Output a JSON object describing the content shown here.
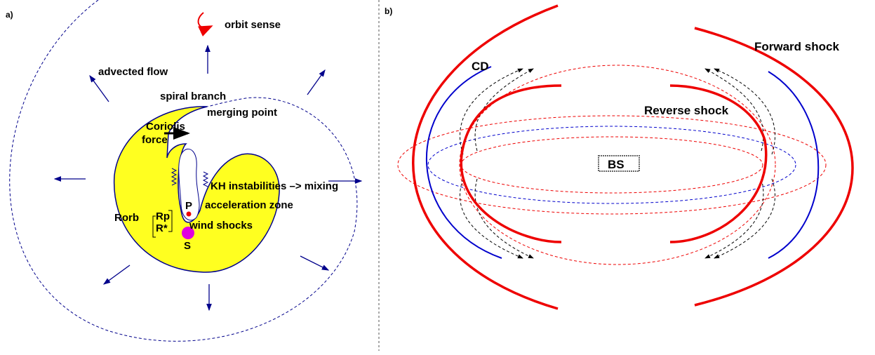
{
  "panel_a": {
    "label": "a)",
    "orbit_sense": "orbit sense",
    "advected_flow": "advected flow",
    "spiral_branch": "spiral branch",
    "merging_point": "merging point",
    "coriolis": "Coriolis",
    "force": "force",
    "kh": "KH instabilities –> mixing",
    "acceleration_zone": "acceleration zone",
    "p": "P",
    "rorb": "Rorb",
    "rp": "Rp",
    "rstar": "R*",
    "wind_shocks": "wind shocks",
    "s": "S"
  },
  "panel_b": {
    "label": "b)",
    "cd": "CD",
    "forward_shock": "Forward shock",
    "reverse_shock": "Reverse shock",
    "bs": "BS"
  }
}
